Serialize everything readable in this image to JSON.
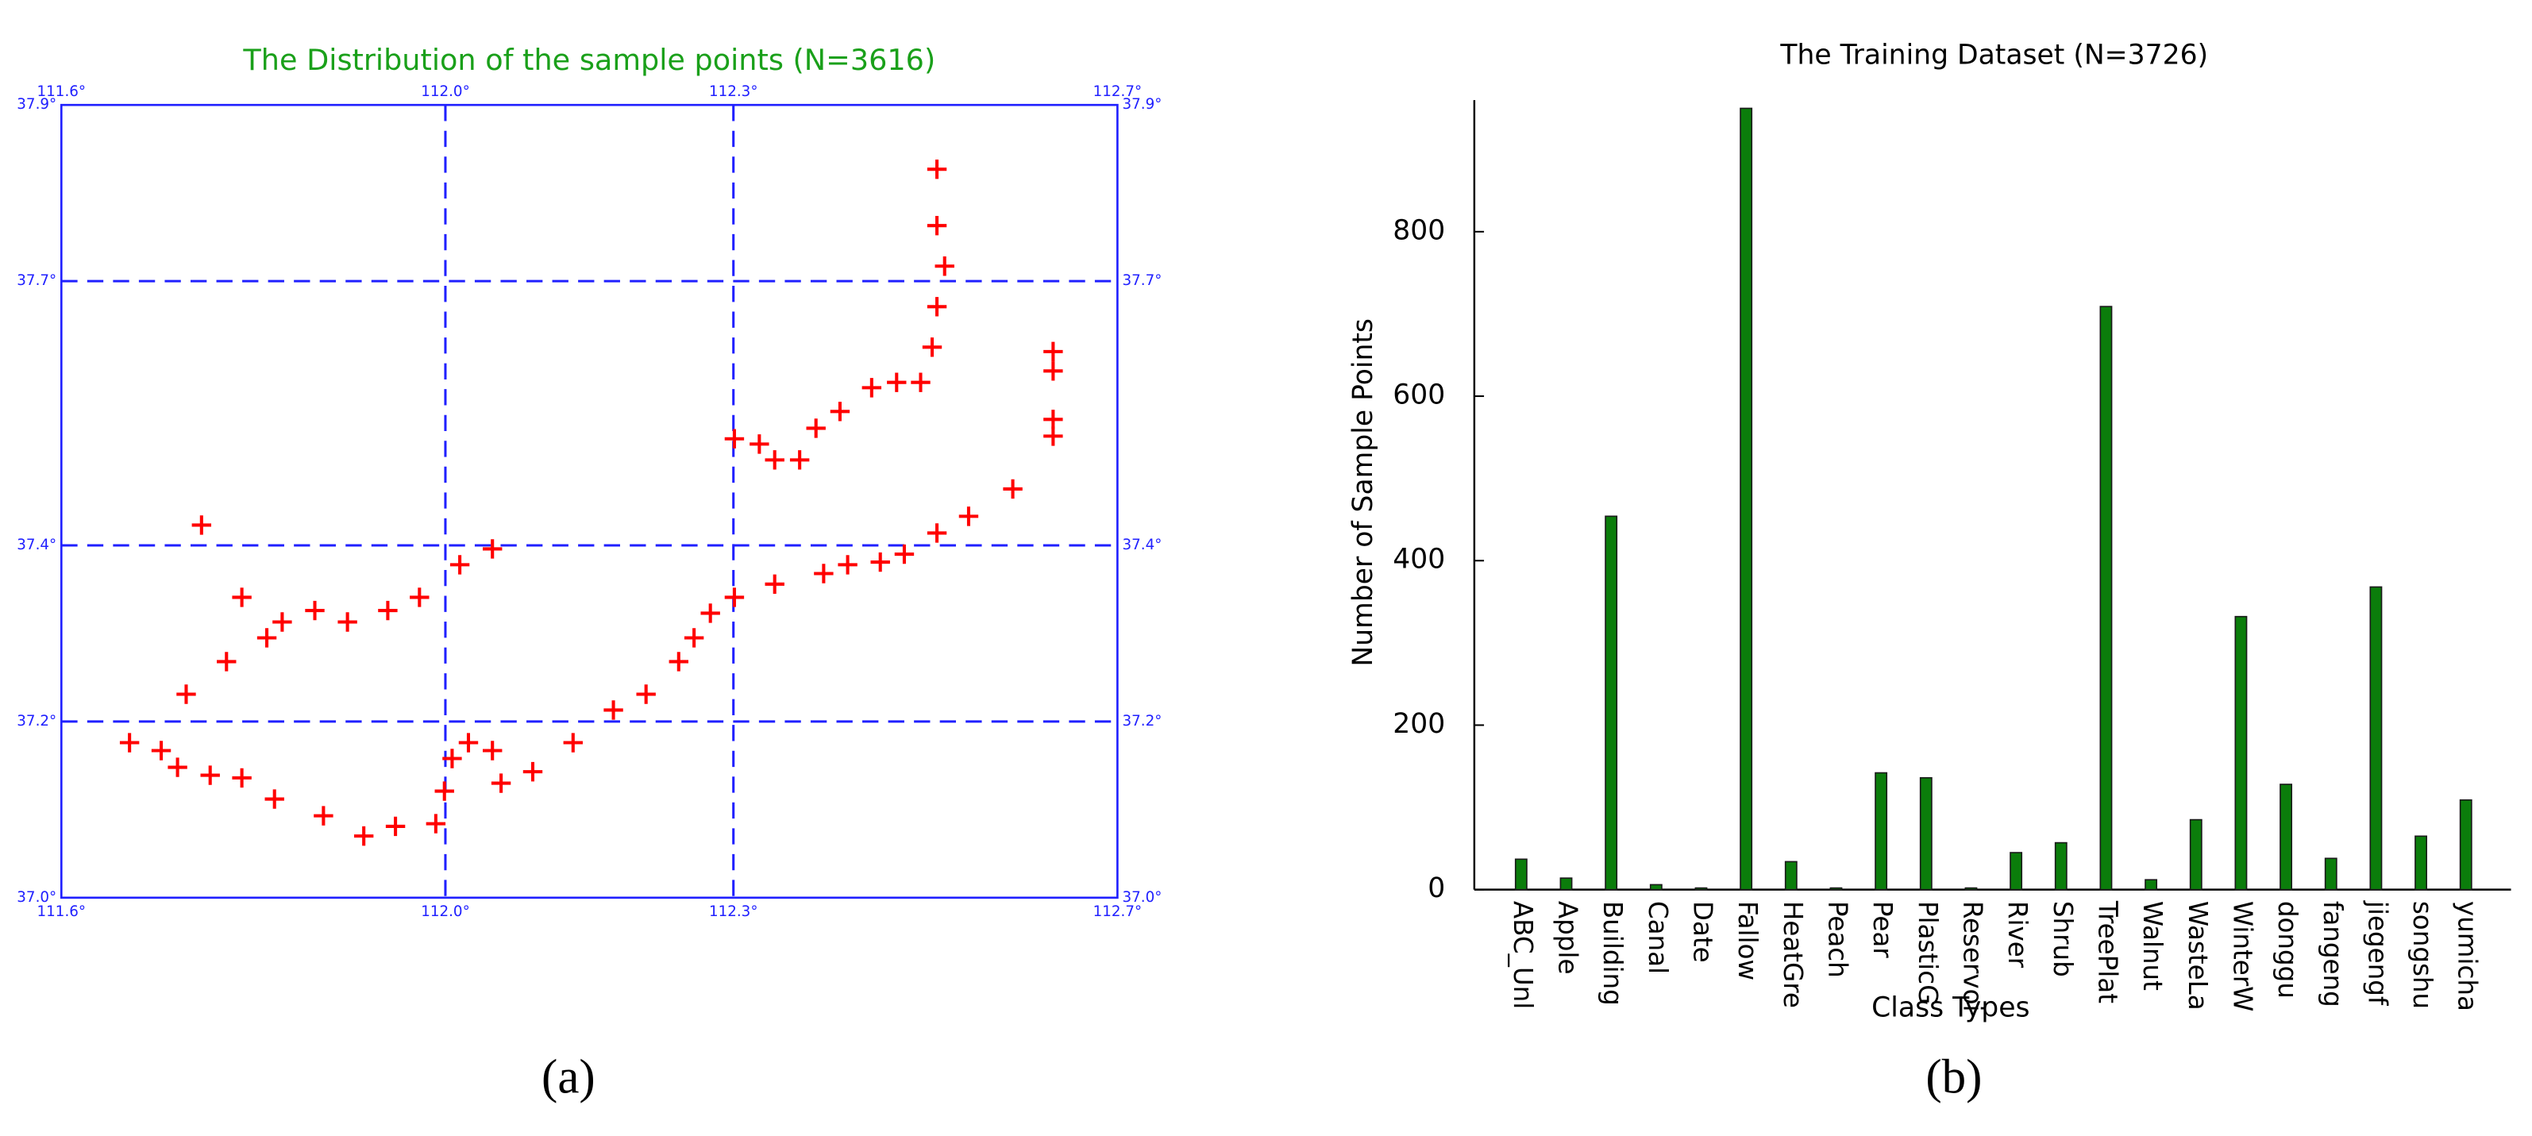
{
  "chart_data": [
    {
      "type": "scatter",
      "title": "The Distribution of the sample points (N=3616)",
      "caption": "(a)",
      "color": "#ff0000",
      "title_color": "#1aa01a",
      "axis_color": "#2020ff",
      "grid": true,
      "xlim": [
        111.6,
        112.7
      ],
      "ylim": [
        37.0,
        37.9
      ],
      "xticks": [
        {
          "value": 111.6,
          "label": "111.6°"
        },
        {
          "value": 112.0,
          "label": "112.0°"
        },
        {
          "value": 112.3,
          "label": "112.3°"
        },
        {
          "value": 112.7,
          "label": "112.7°"
        }
      ],
      "yticks": [
        {
          "value": 37.0,
          "label": "37.0°"
        },
        {
          "value": 37.2,
          "label": "37.2°"
        },
        {
          "value": 37.4,
          "label": "37.4°"
        },
        {
          "value": 37.7,
          "label": "37.7°"
        },
        {
          "value": 37.9,
          "label": "37.9°"
        }
      ],
      "x": [
        111.746,
        111.788,
        111.83,
        111.864,
        111.898,
        111.94,
        111.973,
        112.015,
        112.049,
        111.671,
        111.704,
        111.721,
        111.755,
        111.788,
        111.73,
        111.772,
        111.814,
        111.822,
        111.873,
        111.915,
        111.948,
        111.99,
        111.999,
        112.007,
        112.024,
        112.049,
        112.058,
        112.091,
        112.133,
        112.175,
        112.209,
        112.243,
        112.259,
        112.276,
        112.301,
        112.343,
        112.394,
        112.419,
        112.453,
        112.478,
        112.512,
        112.545,
        112.591,
        112.301,
        112.327,
        112.343,
        112.369,
        112.386,
        112.411,
        112.444,
        112.47,
        112.495,
        112.507,
        112.512,
        112.52,
        112.512,
        112.512,
        112.633,
        112.633,
        112.633,
        112.633
      ],
      "y": [
        37.423,
        37.341,
        37.313,
        37.326,
        37.313,
        37.326,
        37.341,
        37.378,
        37.396,
        37.176,
        37.167,
        37.148,
        37.139,
        37.136,
        37.231,
        37.268,
        37.295,
        37.112,
        37.093,
        37.07,
        37.081,
        37.084,
        37.121,
        37.158,
        37.176,
        37.167,
        37.13,
        37.143,
        37.176,
        37.213,
        37.231,
        37.268,
        37.295,
        37.323,
        37.341,
        37.356,
        37.368,
        37.378,
        37.381,
        37.39,
        37.414,
        37.433,
        37.464,
        37.521,
        37.515,
        37.497,
        37.497,
        37.533,
        37.552,
        37.579,
        37.585,
        37.585,
        37.625,
        37.671,
        37.717,
        37.763,
        37.827,
        37.62,
        37.598,
        37.543,
        37.524
      ]
    },
    {
      "type": "bar",
      "title": "The Training Dataset (N=3726)",
      "caption": "(b)",
      "ylabel": "Number of Sample Points",
      "xlabel": "Class Types",
      "color": "#0b7d0b",
      "categories": [
        "ABC_Unl",
        "Apple",
        "Building",
        "Canal",
        "Date",
        "Fallow",
        "HeatGre",
        "Peach",
        "Pear",
        "PlasticG",
        "Reservoi",
        "River",
        "Shrub",
        "TreePlat",
        "Walnut",
        "WasteLa",
        "WinterW",
        "donggu",
        "fangeng",
        "jiegengf",
        "songshu",
        "yumicha"
      ],
      "values": [
        37,
        14,
        454,
        6,
        2,
        950,
        34,
        2,
        142,
        136,
        2,
        45,
        57,
        709,
        12,
        85,
        332,
        128,
        38,
        368,
        65,
        109
      ],
      "ylim": [
        0,
        960
      ],
      "yticks": [
        0,
        200,
        400,
        600,
        800
      ]
    }
  ]
}
